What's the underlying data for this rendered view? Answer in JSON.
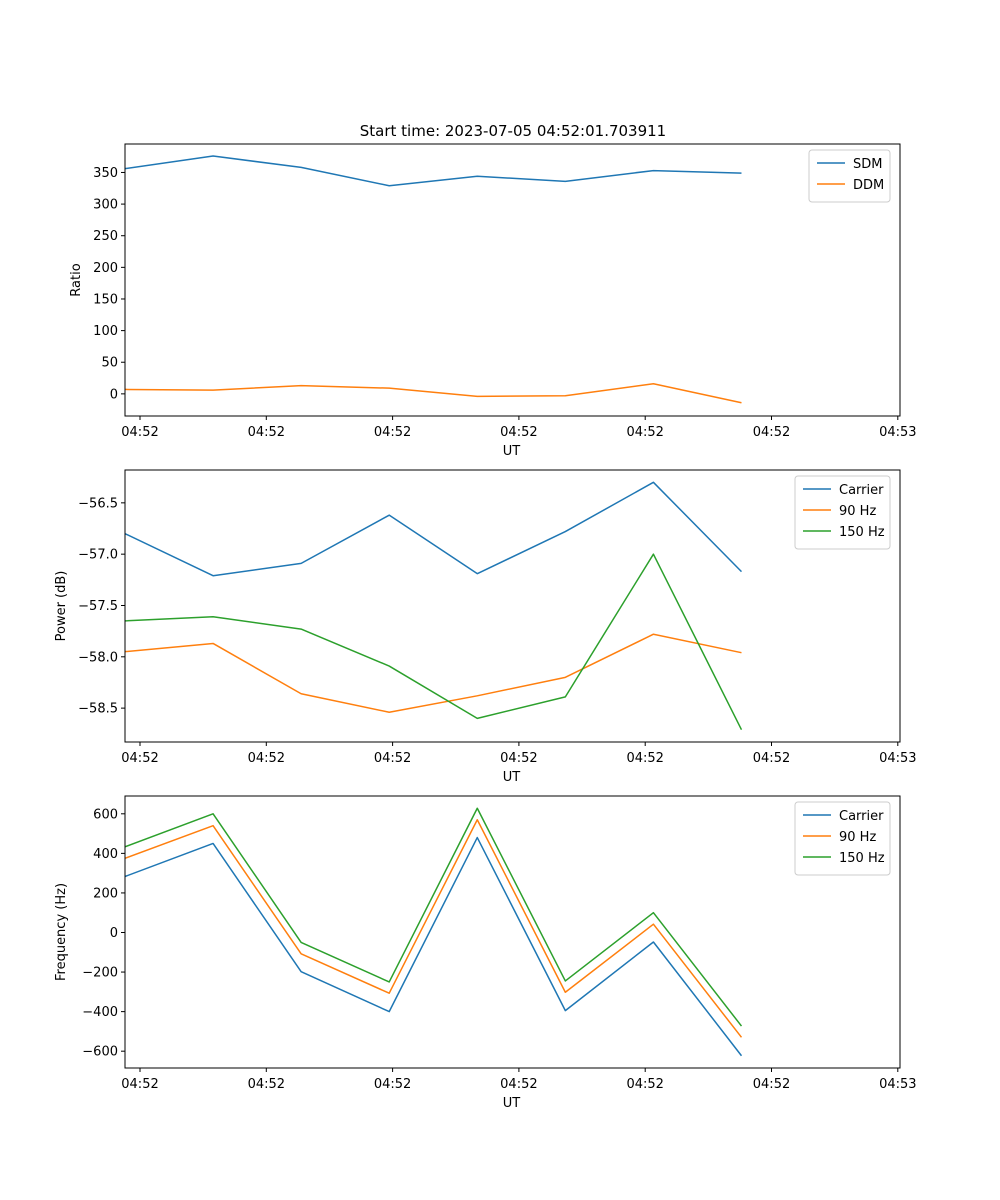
{
  "title": "Start time: 2023-07-05 04:52:01.703911",
  "chart_data": [
    {
      "type": "line",
      "title": "Start time: 2023-07-05 04:52:01.703911",
      "xlabel": "UT",
      "ylabel": "Ratio",
      "x_tick_labels": [
        "04:52",
        "04:52",
        "04:52",
        "04:52",
        "04:52",
        "04:52",
        "04:53"
      ],
      "x_index_range": [
        0,
        8.8
      ],
      "ylim": [
        -35,
        395
      ],
      "yticks": [
        0,
        50,
        100,
        150,
        200,
        250,
        300,
        350
      ],
      "legend": "top-right",
      "series": [
        {
          "name": "SDM",
          "color": "#1f77b4",
          "values": [
            356,
            376,
            358,
            329,
            344,
            336,
            353,
            349
          ]
        },
        {
          "name": "DDM",
          "color": "#ff7f0e",
          "values": [
            7,
            6,
            13,
            9,
            -4,
            -3,
            16,
            -14
          ]
        }
      ]
    },
    {
      "type": "line",
      "title": "",
      "xlabel": "UT",
      "ylabel": "Power (dB)",
      "x_tick_labels": [
        "04:52",
        "04:52",
        "04:52",
        "04:52",
        "04:52",
        "04:52",
        "04:53"
      ],
      "x_index_range": [
        0,
        8.8
      ],
      "ylim": [
        -58.83,
        -56.18
      ],
      "yticks": [
        -58.5,
        -58.0,
        -57.5,
        -57.0,
        -56.5
      ],
      "legend": "top-right",
      "series": [
        {
          "name": "Carrier",
          "color": "#1f77b4",
          "values": [
            -56.8,
            -57.21,
            -57.09,
            -56.62,
            -57.19,
            -56.78,
            -56.3,
            -57.17
          ]
        },
        {
          "name": "90 Hz",
          "color": "#ff7f0e",
          "values": [
            -57.95,
            -57.87,
            -58.36,
            -58.54,
            -58.38,
            -58.2,
            -57.78,
            -57.96
          ]
        },
        {
          "name": "150 Hz",
          "color": "#2ca02c",
          "values": [
            -57.65,
            -57.61,
            -57.73,
            -58.09,
            -58.6,
            -58.39,
            -57.0,
            -58.71
          ]
        }
      ]
    },
    {
      "type": "line",
      "title": "",
      "xlabel": "UT",
      "ylabel": "Frequency (Hz)",
      "x_tick_labels": [
        "04:52",
        "04:52",
        "04:52",
        "04:52",
        "04:52",
        "04:52",
        "04:53"
      ],
      "x_index_range": [
        0,
        8.8
      ],
      "ylim": [
        -685,
        690
      ],
      "yticks": [
        -600,
        -400,
        -200,
        0,
        200,
        400,
        600
      ],
      "legend": "top-right",
      "series": [
        {
          "name": "Carrier",
          "color": "#1f77b4",
          "values": [
            283,
            450,
            -198,
            -400,
            480,
            -395,
            -48,
            -623
          ]
        },
        {
          "name": "90 Hz",
          "color": "#ff7f0e",
          "values": [
            375,
            540,
            -108,
            -307,
            570,
            -302,
            42,
            -530
          ]
        },
        {
          "name": "150 Hz",
          "color": "#2ca02c",
          "values": [
            433,
            600,
            -50,
            -250,
            628,
            -245,
            100,
            -473
          ]
        }
      ]
    }
  ]
}
